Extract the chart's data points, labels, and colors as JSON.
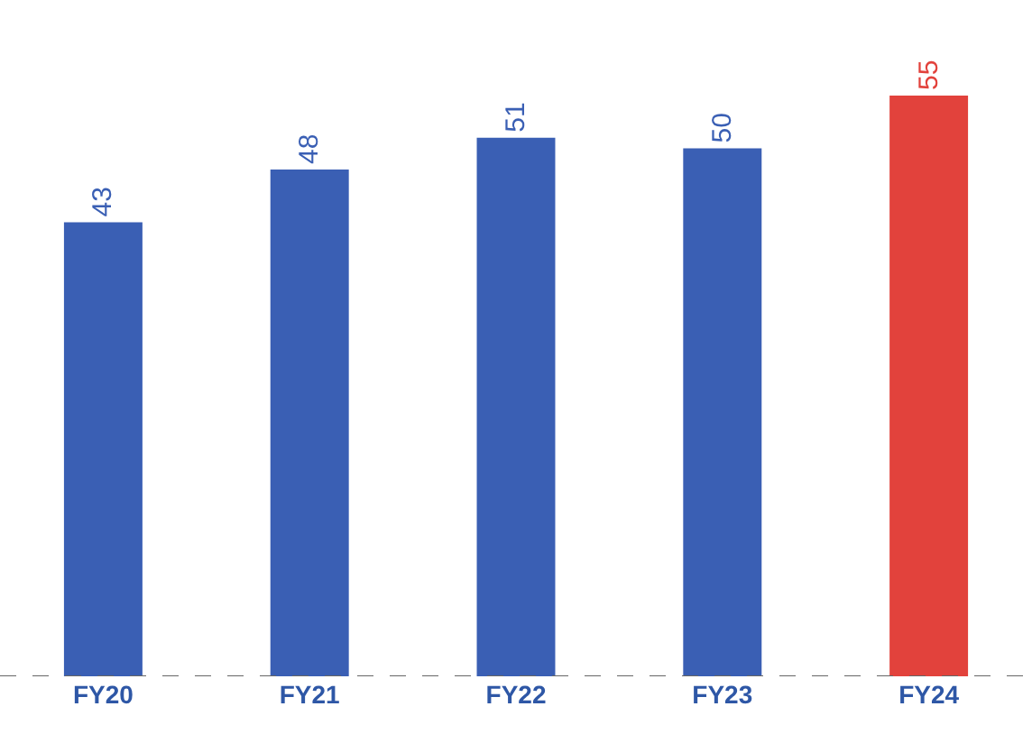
{
  "chart_data": {
    "type": "bar",
    "categories": [
      "FY20",
      "FY21",
      "FY22",
      "FY23",
      "FY24"
    ],
    "values": [
      43,
      48,
      51,
      50,
      55
    ],
    "colors": [
      "#3a5fb4",
      "#3a5fb4",
      "#3a5fb4",
      "#3a5fb4",
      "#e2423c"
    ],
    "data_labels": true
  }
}
